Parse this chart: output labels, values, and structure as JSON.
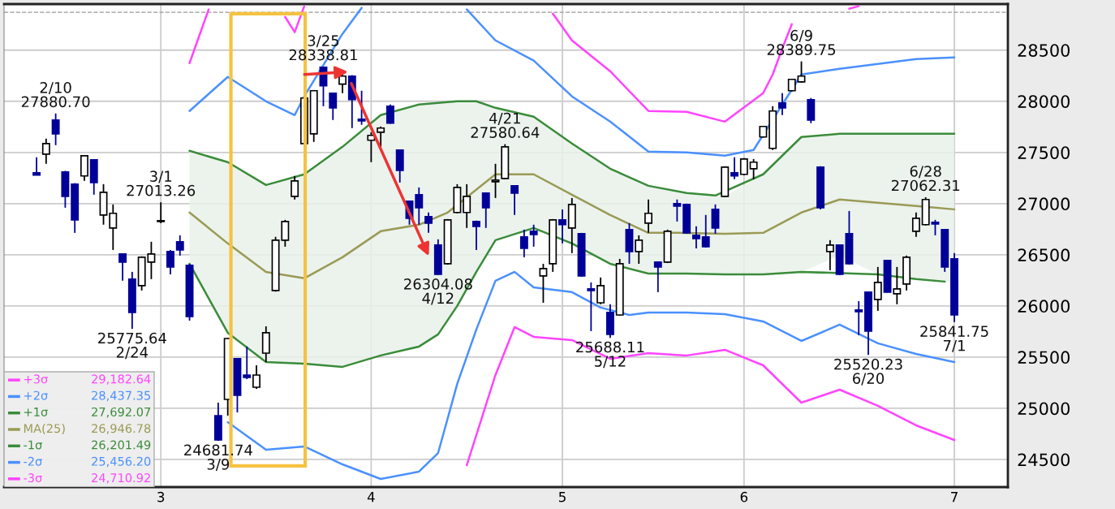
{
  "chart_data": {
    "type": "candlestick",
    "categories": [
      null,
      null,
      null,
      null,
      null,
      null,
      null,
      null,
      null,
      null,
      null,
      null,
      null,
      "3",
      null,
      null,
      null,
      null,
      null,
      null,
      null,
      null,
      null,
      null,
      null,
      null,
      null,
      null,
      null,
      null,
      null,
      null,
      null,
      null,
      null,
      "4",
      null,
      null,
      null,
      null,
      null,
      null,
      null,
      null,
      null,
      null,
      null,
      null,
      null,
      null,
      null,
      null,
      null,
      null,
      null,
      "5",
      null,
      null,
      null,
      null,
      null,
      null,
      null,
      null,
      null,
      null,
      null,
      null,
      null,
      null,
      null,
      null,
      null,
      null,
      "6",
      null,
      null,
      null,
      null,
      null,
      null,
      null,
      null,
      null,
      null,
      null,
      null,
      null,
      null,
      null,
      null,
      null,
      null,
      null,
      null,
      null,
      "7"
    ],
    "ohlc": [
      [
        27301,
        27452,
        27278,
        27278
      ],
      [
        27484,
        27635,
        27389,
        27587
      ],
      [
        27817,
        27880.7,
        27571,
        27682
      ],
      [
        27309,
        27320,
        26960,
        27071
      ],
      [
        27190,
        27200,
        26714,
        26841
      ],
      [
        27270,
        27475,
        27222,
        27468
      ],
      [
        27428,
        27435,
        27087,
        27206
      ],
      [
        26889,
        27190,
        26794,
        27111
      ],
      [
        26762,
        26992,
        26547,
        26905
      ],
      [
        26508,
        26515,
        26246,
        26428
      ],
      [
        26262,
        26333,
        25775.64,
        25936
      ],
      [
        26198,
        26485,
        26151,
        26476
      ],
      [
        26428,
        26627,
        26262,
        26508
      ],
      [
        26825,
        27013.26,
        26809,
        26833
      ],
      [
        26531,
        26547,
        26309,
        26381
      ],
      [
        26627,
        26690,
        26492,
        26547
      ],
      [
        26396,
        26410,
        25857,
        25897
      ],
      null,
      null,
      [
        24928,
        25055,
        24681.74,
        24690
      ],
      [
        25087,
        25690,
        24928,
        25682
      ],
      [
        25484,
        25490,
        24960,
        25127
      ],
      [
        25325,
        25603,
        25285,
        25301
      ],
      [
        25206,
        25420,
        25190,
        25325
      ],
      [
        25539,
        25801,
        25452,
        25738
      ],
      [
        26151,
        26675,
        26140,
        26643
      ],
      [
        26643,
        26841,
        26579,
        26825
      ],
      [
        27071,
        27270,
        27040,
        27222
      ],
      [
        27587,
        28040,
        27580,
        28032
      ],
      [
        27682,
        28110,
        27603,
        28103
      ],
      [
        28333,
        28338.81,
        27952,
        28151
      ],
      [
        28079,
        28085,
        27817,
        27936
      ],
      [
        28167,
        28262,
        28079,
        28246
      ],
      [
        28246,
        28255,
        27738,
        28016
      ],
      [
        27825,
        28103,
        27770,
        27809
      ],
      [
        27619,
        27698,
        27405,
        27667
      ],
      [
        27698,
        27754,
        27555,
        27738
      ],
      [
        27952,
        27968,
        27780,
        27786
      ],
      [
        27524,
        27530,
        27206,
        27325
      ],
      [
        27024,
        27030,
        26794,
        26857
      ],
      [
        27087,
        27158,
        26794,
        26960
      ],
      [
        26873,
        26913,
        26714,
        26809
      ],
      [
        26595,
        26651,
        26304.08,
        26309
      ],
      [
        26412,
        26849,
        26404,
        26841
      ],
      [
        26913,
        27190,
        26905,
        27158
      ],
      [
        26913,
        27190,
        26762,
        27071
      ],
      [
        26825,
        26833,
        26547,
        26778
      ],
      [
        27103,
        27110,
        26762,
        26960
      ],
      [
        27214,
        27389,
        27055,
        27230
      ],
      [
        27246,
        27580.64,
        27238,
        27555
      ],
      [
        27174,
        27180,
        26889,
        27103
      ],
      [
        26675,
        26746,
        26476,
        26563
      ],
      [
        26730,
        26794,
        26579,
        26698
      ],
      [
        26293,
        26412,
        26031,
        26365
      ],
      [
        26412,
        26849,
        26333,
        26841
      ],
      [
        26841,
        26944,
        26611,
        26794
      ],
      [
        26762,
        27055,
        26516,
        26992
      ],
      [
        26706,
        26714,
        26285,
        26293
      ],
      [
        26166,
        26230,
        25754,
        26151
      ],
      [
        26031,
        26278,
        26016,
        26198
      ],
      [
        25936,
        26016,
        25688.11,
        25722
      ],
      [
        25912,
        26460,
        25905,
        26412
      ],
      [
        26746,
        26809,
        26412,
        26531
      ],
      [
        26531,
        26690,
        26412,
        26643
      ],
      [
        26809,
        27040,
        26714,
        26905
      ],
      [
        26428,
        26436,
        26135,
        26381
      ],
      [
        26428,
        26746,
        26420,
        26730
      ],
      [
        27000,
        27040,
        26825,
        26976
      ],
      [
        26992,
        27000,
        26706,
        26714
      ],
      [
        26690,
        26778,
        26563,
        26659
      ],
      [
        26675,
        26889,
        26570,
        26579
      ],
      [
        26944,
        26992,
        26706,
        26762
      ],
      [
        27071,
        27365,
        27063,
        27357
      ],
      [
        27301,
        27452,
        27238,
        27270
      ],
      [
        27286,
        27445,
        27278,
        27436
      ],
      [
        27341,
        27436,
        27238,
        27405
      ],
      [
        27651,
        27760,
        27645,
        27754
      ],
      [
        27540,
        27952,
        27524,
        27905
      ],
      [
        27984,
        28079,
        27865,
        27936
      ],
      [
        28103,
        28220,
        28095,
        28214
      ],
      [
        28190,
        28389.75,
        28182,
        28246
      ],
      [
        28016,
        28032,
        27786,
        27817
      ],
      [
        27357,
        27365,
        26944,
        26960
      ],
      [
        26531,
        26643,
        26349,
        26595
      ],
      [
        26595,
        26600,
        26300,
        26309
      ],
      [
        26706,
        26928,
        26405,
        26412
      ],
      [
        25960,
        26047,
        25714,
        25944
      ],
      [
        26135,
        26140,
        25520.23,
        25754
      ],
      [
        26063,
        26381,
        25952,
        26230
      ],
      [
        26444,
        26450,
        26130,
        26135
      ],
      [
        26119,
        26381,
        26016,
        26166
      ],
      [
        26214,
        26492,
        26151,
        26476
      ],
      [
        26730,
        26913,
        26675,
        26857
      ],
      [
        26794,
        27062.31,
        26787,
        27040
      ],
      [
        26817,
        26841,
        26690,
        26801
      ],
      [
        26746,
        26752,
        26333,
        26381
      ],
      [
        26460,
        26516,
        25841.75,
        25912
      ]
    ],
    "colors": [
      "#000099",
      "#ffffff",
      "#000099",
      "#000099",
      "#000099",
      "#ffffff",
      "#000099",
      "#ffffff",
      "#ffffff",
      "#000099",
      "#000099",
      "#ffffff",
      "#ffffff",
      "#ffffff",
      "#000099",
      "#000099",
      "#000099",
      null,
      null,
      "#000099",
      "#ffffff",
      "#000099",
      "#000099",
      "#ffffff",
      "#ffffff",
      "#ffffff",
      "#ffffff",
      "#ffffff",
      "#ffffff",
      "#ffffff",
      "#000099",
      "#000099",
      "#ffffff",
      "#000099",
      "#000099",
      "#ffffff",
      "#ffffff",
      "#000099",
      "#000099",
      "#000099",
      "#000099",
      "#000099",
      "#000099",
      "#ffffff",
      "#ffffff",
      "#ffffff",
      "#000099",
      "#000099",
      "#ffffff",
      "#ffffff",
      "#000099",
      "#000099",
      "#000099",
      "#ffffff",
      "#ffffff",
      "#000099",
      "#ffffff",
      "#000099",
      "#000099",
      "#ffffff",
      "#000099",
      "#ffffff",
      "#000099",
      "#ffffff",
      "#ffffff",
      "#000099",
      "#ffffff",
      "#000099",
      "#000099",
      "#000099",
      "#000099",
      "#000099",
      "#ffffff",
      "#000099",
      "#ffffff",
      "#ffffff",
      "#ffffff",
      "#ffffff",
      "#000099",
      "#ffffff",
      "#ffffff",
      "#000099",
      "#000099",
      "#ffffff",
      "#000099",
      "#000099",
      "#000099",
      "#000099",
      "#ffffff",
      "#000099",
      "#ffffff",
      "#ffffff",
      "#ffffff",
      "#ffffff",
      "#000099",
      "#000099",
      "#000099"
    ],
    "series": [
      {
        "type": "line",
        "name": "+3σ",
        "color": "#ff44ff",
        "values": [
          null,
          null,
          null,
          null,
          null,
          null,
          null,
          null,
          null,
          null,
          null,
          null,
          null,
          null,
          null,
          null,
          28373,
          28635,
          28897,
          null,
          null,
          null,
          null,
          null,
          null,
          null,
          null,
          null,
          null,
          null,
          null,
          null,
          null,
          null,
          null,
          null,
          null,
          null,
          null,
          null,
          null,
          null,
          null,
          null,
          null,
          null,
          null,
          null,
          null,
          null,
          null,
          null,
          null,
          null,
          null,
          null,
          null,
          null,
          null,
          null,
          null,
          null,
          null,
          null,
          null,
          null,
          null,
          null,
          null,
          null,
          null,
          null,
          null,
          null,
          null,
          null,
          null,
          null,
          null,
          null,
          null,
          null,
          null,
          null,
          null,
          null,
          null,
          null,
          null,
          null,
          null,
          null,
          null,
          null,
          null,
          null,
          null
        ]
      },
      {
        "type": "line",
        "name": "+2σ",
        "color": "#4a90ff",
        "values": [
          null,
          null,
          null,
          null,
          null,
          null,
          null,
          null,
          null,
          null,
          null,
          null,
          null,
          null,
          null,
          null,
          27905,
          null,
          null,
          null,
          28238,
          null,
          null,
          null,
          28000,
          null,
          null,
          27865,
          28048,
          null,
          null,
          null,
          28659,
          null,
          28913,
          null,
          null,
          null,
          null,
          null,
          null,
          null,
          null,
          null,
          null,
          null,
          null,
          null,
          null,
          null,
          null,
          null,
          null,
          null,
          null,
          null,
          null,
          null,
          null,
          null,
          null,
          null,
          null,
          null,
          null,
          null,
          null,
          null,
          null,
          null,
          null,
          null,
          null,
          null,
          null,
          null,
          null,
          null,
          null,
          null,
          null,
          null,
          null,
          null,
          null,
          null,
          null,
          null,
          null,
          null,
          null,
          null,
          null,
          null,
          null,
          null,
          null
        ]
      },
      {
        "type": "line",
        "name": "+1σ",
        "color": "#3a8c3a",
        "values": [
          null,
          null,
          null,
          null,
          null,
          null,
          null,
          null,
          null,
          null,
          null,
          null,
          null,
          null,
          null,
          null,
          27516,
          null,
          null,
          null,
          27405,
          null,
          null,
          null,
          27182,
          null,
          null,
          null,
          27286,
          null,
          null,
          null,
          27555,
          null,
          null,
          null,
          27865,
          null,
          null,
          null,
          27968,
          null,
          27984,
          null,
          28000,
          null,
          28000,
          null,
          27936,
          null,
          null,
          null,
          27849,
          null,
          null,
          null,
          27587,
          null,
          null,
          null,
          27341,
          null,
          null,
          null,
          27174,
          null,
          null,
          null,
          27103,
          null,
          null,
          27079,
          null,
          null,
          null,
          null,
          27286,
          null,
          null,
          null,
          27651,
          null,
          null,
          null,
          27682,
          null,
          null,
          null,
          27682,
          null,
          null,
          null,
          27682,
          null,
          null,
          null,
          27682
        ]
      },
      {
        "type": "line",
        "name": "MA(25)",
        "color": "#9a9a55",
        "values": [
          null,
          null,
          null,
          null,
          null,
          null,
          null,
          null,
          null,
          null,
          null,
          null,
          null,
          null,
          null,
          null,
          26913,
          null,
          null,
          null,
          26611,
          null,
          null,
          null,
          26333,
          null,
          null,
          null,
          26270,
          null,
          null,
          null,
          26476,
          null,
          null,
          null,
          26730,
          null,
          null,
          null,
          26794,
          null,
          null,
          26913,
          null,
          null,
          null,
          null,
          27286,
          null,
          null,
          null,
          27286,
          null,
          null,
          null,
          27087,
          null,
          null,
          null,
          26889,
          null,
          null,
          null,
          26714,
          null,
          null,
          26714,
          null,
          null,
          null,
          null,
          26706,
          null,
          null,
          null,
          26714,
          null,
          null,
          null,
          26913,
          null,
          null,
          null,
          27040,
          null,
          null,
          null,
          27008,
          null,
          null,
          null,
          26976,
          null,
          null,
          null,
          26944
        ],
        "upper": [
          null,
          null,
          null,
          null,
          null,
          null,
          null,
          null,
          null,
          null,
          null,
          null,
          null,
          null,
          null,
          null,
          27516,
          null,
          null,
          null,
          27405,
          null,
          null,
          null,
          27182,
          null,
          null,
          null,
          27286,
          null,
          null,
          null,
          27555,
          null,
          null,
          null,
          27865,
          null,
          null,
          null,
          27968,
          null,
          27984,
          null,
          28000,
          null,
          28000,
          null,
          27936,
          null,
          null,
          null,
          27849,
          null,
          null,
          null,
          27587,
          null,
          null,
          null,
          27341,
          null,
          null,
          null,
          27174,
          null,
          null,
          null,
          27103,
          null,
          null,
          null,
          27071,
          null,
          null,
          null,
          27286,
          null,
          null,
          null,
          27651,
          null,
          null,
          null,
          27682,
          null,
          null,
          null,
          27682,
          null,
          null,
          null,
          27682,
          null,
          null,
          null,
          27682
        ],
        "lower": [
          null,
          null,
          null,
          null,
          null,
          null,
          null,
          null,
          null,
          null,
          null,
          null,
          null,
          null,
          null,
          null,
          26412,
          null,
          null,
          null,
          25738,
          null,
          null,
          null,
          25452,
          null,
          null,
          null,
          25436,
          null,
          null,
          null,
          25405,
          null,
          null,
          null,
          25516,
          null,
          null,
          null,
          25603,
          null,
          25722,
          null,
          26000,
          null,
          26333,
          null,
          26643,
          null,
          null,
          null,
          26762,
          null,
          null,
          null,
          26611,
          null,
          null,
          null,
          26412,
          null,
          null,
          null,
          26317,
          null,
          null,
          null,
          26317,
          null,
          null,
          null,
          26309,
          null,
          null,
          null,
          26309,
          null,
          null,
          null,
          26333,
          null,
          null,
          null,
          26492,
          null,
          null,
          null,
          26309,
          null,
          null,
          null,
          26262,
          null,
          null,
          null,
          26230
        ]
      },
      {
        "type": "line",
        "name": "-1σ",
        "color": "#3a8c3a",
        "values": [
          null,
          null,
          null,
          null,
          null,
          null,
          null,
          null,
          null,
          null,
          null,
          null,
          null,
          null,
          null,
          null,
          26412,
          null,
          null,
          null,
          25738,
          null,
          null,
          null,
          25452,
          null,
          null,
          null,
          25436,
          null,
          null,
          null,
          25405,
          null,
          null,
          null,
          25516,
          null,
          null,
          null,
          25603,
          null,
          25722,
          null,
          26000,
          null,
          26333,
          null,
          26643,
          null,
          null,
          null,
          26762,
          null,
          null,
          null,
          26611,
          null,
          null,
          null,
          26412,
          null,
          null,
          null,
          26317,
          null,
          null,
          null,
          26317,
          null,
          null,
          null,
          26309,
          null,
          null,
          null,
          26309,
          null,
          null,
          null,
          26333,
          null,
          null,
          null,
          null,
          null,
          null,
          null,
          26309,
          null,
          null,
          null,
          26262,
          null,
          null,
          26238,
          null
        ]
      },
      {
        "type": "line",
        "name": "-2σ",
        "color": "#4a90ff",
        "values": [
          null,
          null,
          null,
          null,
          null,
          null,
          null,
          null,
          null,
          null,
          null,
          null,
          null,
          null,
          null,
          null,
          null,
          null,
          null,
          null,
          24865,
          null,
          null,
          null,
          24595,
          null,
          null,
          null,
          24627,
          null,
          null,
          null,
          24452,
          null,
          null,
          null,
          24309,
          null,
          null,
          null,
          24381,
          null,
          24563,
          null,
          25238,
          null,
          25770,
          null,
          26246,
          null,
          26333,
          null,
          26182,
          null,
          null,
          null,
          26135,
          null,
          null,
          25984,
          null,
          null,
          25912,
          null,
          25936,
          null,
          null,
          null,
          25936,
          null,
          null,
          null,
          25920,
          null,
          null,
          null,
          25849,
          null,
          null,
          null,
          25658,
          null,
          null,
          null,
          25817,
          null,
          null,
          null,
          25635,
          null,
          null,
          null,
          25531,
          null,
          null,
          null,
          25452
        ]
      },
      {
        "type": "line",
        "name": "-3σ",
        "color": "#ff44ff",
        "values": [
          null,
          null,
          null,
          null,
          null,
          null,
          null,
          null,
          null,
          null,
          null,
          null,
          null,
          null,
          null,
          null,
          null,
          null,
          null,
          null,
          null,
          null,
          null,
          null,
          null,
          null,
          null,
          null,
          null,
          null,
          null,
          null,
          null,
          null,
          null,
          null,
          null,
          null,
          null,
          null,
          null,
          null,
          null,
          null,
          null,
          24444,
          null,
          null,
          25325,
          null,
          25793,
          null,
          25698,
          null,
          null,
          null,
          25666,
          null,
          null,
          null,
          25484,
          null,
          null,
          null,
          25539,
          null,
          null,
          null,
          25516,
          null,
          null,
          null,
          25571,
          null,
          null,
          null,
          25420,
          null,
          null,
          null,
          25055,
          null,
          null,
          null,
          25182,
          null,
          null,
          null,
          25024,
          null,
          null,
          null,
          24833,
          null,
          null,
          null,
          24690
        ]
      },
      {
        "type": "line",
        "color": "#ff44ff",
        "values": [
          null,
          null,
          null,
          null,
          null,
          null,
          null,
          null,
          null,
          null,
          null,
          null,
          null,
          null,
          null,
          null,
          null,
          null,
          null,
          null,
          null,
          null,
          null,
          null,
          null,
          null,
          28825,
          28675,
          28929,
          null,
          null,
          null,
          null,
          null,
          null,
          null,
          null,
          null,
          null,
          null,
          null,
          null,
          null,
          null,
          null,
          null,
          null,
          null,
          null,
          null,
          null,
          null,
          null,
          null,
          null,
          null,
          null,
          null,
          null,
          null,
          null,
          null,
          null,
          null,
          null,
          null,
          null,
          null,
          null,
          null,
          null,
          null,
          null,
          null,
          null,
          null,
          null,
          null,
          null,
          null,
          null,
          null,
          null,
          null,
          null,
          null,
          null,
          null,
          null,
          null,
          null,
          null,
          null,
          null,
          null,
          null,
          null
        ]
      },
      {
        "type": "line",
        "color": "#ff44ff",
        "values": [
          null,
          null,
          null,
          null,
          null,
          null,
          null,
          null,
          null,
          null,
          null,
          null,
          null,
          null,
          null,
          null,
          null,
          null,
          null,
          null,
          null,
          null,
          null,
          null,
          null,
          null,
          null,
          null,
          null,
          null,
          null,
          null,
          null,
          null,
          null,
          null,
          null,
          null,
          null,
          null,
          null,
          null,
          null,
          null,
          null,
          null,
          null,
          null,
          null,
          null,
          null,
          null,
          null,
          null,
          28857,
          null,
          28595,
          null,
          null,
          null,
          28294,
          null,
          null,
          null,
          27905,
          null,
          null,
          null,
          27897,
          null,
          null,
          null,
          27801,
          null,
          null,
          null,
          28079,
          28262,
          28516,
          28754,
          null,
          null,
          null,
          null,
          null,
          null,
          null,
          null,
          null,
          null,
          null,
          null,
          null,
          null,
          null,
          null,
          null
        ]
      },
      {
        "type": "line",
        "color": "#ff44ff",
        "values": [
          null,
          null,
          null,
          null,
          null,
          null,
          null,
          null,
          null,
          null,
          null,
          null,
          null,
          null,
          null,
          null,
          null,
          null,
          null,
          null,
          null,
          null,
          null,
          null,
          null,
          null,
          null,
          null,
          null,
          null,
          null,
          null,
          null,
          null,
          null,
          null,
          null,
          null,
          null,
          null,
          null,
          null,
          null,
          null,
          null,
          null,
          null,
          null,
          null,
          null,
          null,
          null,
          null,
          null,
          null,
          null,
          null,
          null,
          null,
          null,
          null,
          null,
          null,
          null,
          null,
          null,
          null,
          null,
          null,
          null,
          null,
          null,
          null,
          null,
          null,
          null,
          null,
          null,
          null,
          null,
          null,
          null,
          null,
          null,
          null,
          28905,
          28929,
          null,
          null,
          null,
          null,
          null,
          null,
          null,
          null,
          null,
          null
        ]
      },
      {
        "type": "line",
        "color": "#4a90ff",
        "values": [
          null,
          null,
          null,
          null,
          null,
          null,
          null,
          null,
          null,
          null,
          null,
          null,
          null,
          null,
          null,
          null,
          null,
          null,
          null,
          null,
          null,
          null,
          null,
          null,
          null,
          null,
          null,
          null,
          null,
          null,
          null,
          null,
          null,
          null,
          null,
          null,
          null,
          null,
          null,
          null,
          null,
          null,
          null,
          null,
          null,
          28897,
          null,
          null,
          28595,
          null,
          null,
          null,
          28397,
          null,
          null,
          null,
          28048,
          null,
          null,
          null,
          27802,
          null,
          null,
          null,
          27508,
          null,
          null,
          null,
          27500,
          null,
          null,
          null,
          27468,
          null,
          null,
          27524,
          null,
          null,
          null,
          null,
          28262,
          null,
          null,
          null,
          28317,
          null,
          null,
          null,
          28365,
          null,
          null,
          null,
          28413,
          null,
          null,
          null,
          28428
        ]
      }
    ],
    "annotations": [
      "29,182.64",
      "28,437.35",
      "27,692.07",
      "26,946.78",
      "26,201.49",
      "25,456.20",
      "24,710.92",
      {
        "text": "2/10\n27880.70",
        "y": 27880.7
      },
      {
        "text": "3/1\n27013.26",
        "y": 27013.26
      },
      {
        "text": "25775.64\n2/24",
        "y": 25775.64
      },
      {
        "text": "24681.74\n3/9",
        "y": 24681.74
      },
      {
        "text": "3/25\n28338.81",
        "y": 28338.81
      },
      {
        "text": "26304.08\n4/12",
        "y": 26304.08
      },
      {
        "text": "4/21\n27580.64",
        "y": 27580.64
      },
      {
        "text": "25688.11\n5/12",
        "y": 25688.11
      },
      {
        "text": "6/9\n28389.75",
        "y": 28389.75
      },
      {
        "text": "25520.23\n6/20",
        "y": 25520.23
      },
      {
        "text": "6/28\n27062.31",
        "y": 27062.31
      },
      {
        "text": "25841.75\n7/1",
        "y": 25841.75
      }
    ],
    "ref_lines": [
      {
        "axis": "y",
        "value": 28870,
        "color": "#999999",
        "line_style": "dashed"
      }
    ],
    "ylim": [
      24230,
      28950
    ],
    "yticks": [
      24500,
      25000,
      25500,
      26000,
      26500,
      27000,
      27500,
      28000,
      28500
    ],
    "grid": true,
    "legend": "bottom left"
  }
}
